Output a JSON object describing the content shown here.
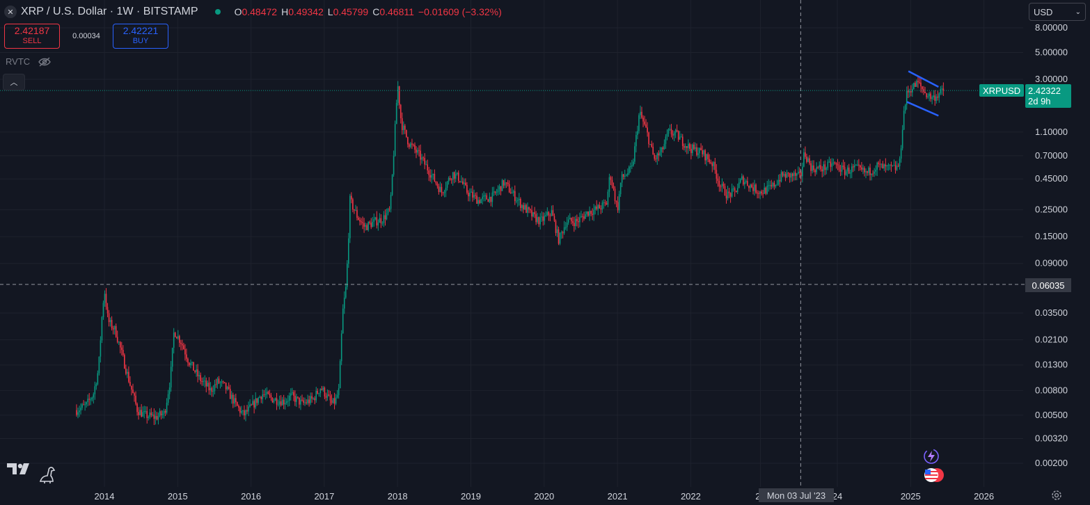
{
  "header": {
    "title": "XRP / U.S. Dollar · 1W · BITSTAMP",
    "ohlc": [
      {
        "k": "O",
        "v": "0.48472"
      },
      {
        "k": "H",
        "v": "0.49342"
      },
      {
        "k": "L",
        "v": "0.45799"
      },
      {
        "k": "C",
        "v": "0.46811"
      }
    ],
    "change": "−0.01609 (−3.32%)"
  },
  "trade": {
    "sell_price": "2.42187",
    "sell_label": "SELL",
    "spread": "0.00034",
    "buy_price": "2.42221",
    "buy_label": "BUY"
  },
  "indicator": {
    "name": "RVTC"
  },
  "currency": {
    "selected": "USD"
  },
  "price_tag": {
    "symbol": "XRPUSD",
    "price": "2.42322",
    "countdown": "2d 9h"
  },
  "crosshair": {
    "price": "0.06035",
    "date": "Mon 03 Jul '23",
    "year_frac": 2023.5
  },
  "colors": {
    "up": "#089981",
    "down": "#f23645",
    "bg": "#131722",
    "grid": "#1e222d",
    "pattern": "#2962ff"
  },
  "chart_data": {
    "type": "candlestick",
    "symbol": "XRPUSD",
    "interval": "1W",
    "exchange": "BITSTAMP",
    "y_scale": "log",
    "ylim": [
      0.0015,
      10
    ],
    "xlim": [
      2013.5,
      2026.3
    ],
    "y_ticks": [
      "8.00000",
      "5.00000",
      "3.00000",
      "1.10000",
      "0.70000",
      "0.45000",
      "0.25000",
      "0.15000",
      "0.09000",
      "0.06035",
      "0.03500",
      "0.02100",
      "0.01300",
      "0.00800",
      "0.00500",
      "0.00320",
      "0.00200"
    ],
    "y_tick_values": [
      8,
      5,
      3,
      1.1,
      0.7,
      0.45,
      0.25,
      0.15,
      0.09,
      0.06035,
      0.035,
      0.021,
      0.013,
      0.008,
      0.005,
      0.0032,
      0.002
    ],
    "x_ticks": [
      "2014",
      "2015",
      "2016",
      "2017",
      "2018",
      "2019",
      "2020",
      "2021",
      "2022",
      "20",
      "24",
      "2025",
      "2026"
    ],
    "x_tick_values": [
      2014,
      2015,
      2016,
      2017,
      2018,
      2019,
      2020,
      2021,
      2022,
      2022.95,
      2024,
      2025,
      2026
    ],
    "price_path": [
      [
        2013.62,
        0.0055
      ],
      [
        2013.75,
        0.006
      ],
      [
        2013.85,
        0.0075
      ],
      [
        2013.92,
        0.012
      ],
      [
        2013.97,
        0.035
      ],
      [
        2014.0,
        0.055
      ],
      [
        2014.05,
        0.03
      ],
      [
        2014.15,
        0.025
      ],
      [
        2014.25,
        0.015
      ],
      [
        2014.35,
        0.009
      ],
      [
        2014.45,
        0.0055
      ],
      [
        2014.55,
        0.005
      ],
      [
        2014.7,
        0.0048
      ],
      [
        2014.82,
        0.0052
      ],
      [
        2014.9,
        0.01
      ],
      [
        2014.95,
        0.025
      ],
      [
        2015.05,
        0.02
      ],
      [
        2015.15,
        0.014
      ],
      [
        2015.3,
        0.01
      ],
      [
        2015.45,
        0.008
      ],
      [
        2015.55,
        0.0095
      ],
      [
        2015.65,
        0.0085
      ],
      [
        2015.8,
        0.006
      ],
      [
        2015.9,
        0.005
      ],
      [
        2016.0,
        0.0058
      ],
      [
        2016.15,
        0.0075
      ],
      [
        2016.3,
        0.0068
      ],
      [
        2016.45,
        0.0065
      ],
      [
        2016.55,
        0.0072
      ],
      [
        2016.7,
        0.0062
      ],
      [
        2016.85,
        0.0068
      ],
      [
        2016.95,
        0.0085
      ],
      [
        2017.05,
        0.007
      ],
      [
        2017.1,
        0.0062
      ],
      [
        2017.15,
        0.0065
      ],
      [
        2017.2,
        0.008
      ],
      [
        2017.25,
        0.035
      ],
      [
        2017.3,
        0.06
      ],
      [
        2017.33,
        0.15
      ],
      [
        2017.35,
        0.3
      ],
      [
        2017.45,
        0.22
      ],
      [
        2017.55,
        0.18
      ],
      [
        2017.7,
        0.2
      ],
      [
        2017.8,
        0.21
      ],
      [
        2017.9,
        0.25
      ],
      [
        2017.96,
        1.0
      ],
      [
        2018.0,
        2.8
      ],
      [
        2018.05,
        1.3
      ],
      [
        2018.15,
        0.9
      ],
      [
        2018.3,
        0.7
      ],
      [
        2018.45,
        0.5
      ],
      [
        2018.6,
        0.35
      ],
      [
        2018.75,
        0.5
      ],
      [
        2018.85,
        0.45
      ],
      [
        2018.95,
        0.35
      ],
      [
        2019.1,
        0.3
      ],
      [
        2019.3,
        0.32
      ],
      [
        2019.45,
        0.42
      ],
      [
        2019.55,
        0.35
      ],
      [
        2019.7,
        0.27
      ],
      [
        2019.85,
        0.22
      ],
      [
        2019.95,
        0.2
      ],
      [
        2020.1,
        0.24
      ],
      [
        2020.2,
        0.14
      ],
      [
        2020.3,
        0.2
      ],
      [
        2020.45,
        0.2
      ],
      [
        2020.6,
        0.24
      ],
      [
        2020.7,
        0.25
      ],
      [
        2020.85,
        0.28
      ],
      [
        2020.9,
        0.5
      ],
      [
        2021.0,
        0.25
      ],
      [
        2021.05,
        0.45
      ],
      [
        2021.2,
        0.55
      ],
      [
        2021.3,
        1.6
      ],
      [
        2021.4,
        1.1
      ],
      [
        2021.5,
        0.65
      ],
      [
        2021.6,
        0.75
      ],
      [
        2021.7,
        1.1
      ],
      [
        2021.8,
        1.05
      ],
      [
        2021.9,
        0.9
      ],
      [
        2022.0,
        0.8
      ],
      [
        2022.15,
        0.75
      ],
      [
        2022.3,
        0.6
      ],
      [
        2022.4,
        0.4
      ],
      [
        2022.5,
        0.33
      ],
      [
        2022.6,
        0.35
      ],
      [
        2022.7,
        0.45
      ],
      [
        2022.85,
        0.38
      ],
      [
        2022.95,
        0.35
      ],
      [
        2023.1,
        0.38
      ],
      [
        2023.25,
        0.48
      ],
      [
        2023.4,
        0.48
      ],
      [
        2023.5,
        0.47
      ],
      [
        2023.55,
        0.75
      ],
      [
        2023.65,
        0.55
      ],
      [
        2023.8,
        0.55
      ],
      [
        2023.95,
        0.6
      ],
      [
        2024.1,
        0.52
      ],
      [
        2024.25,
        0.55
      ],
      [
        2024.4,
        0.5
      ],
      [
        2024.55,
        0.58
      ],
      [
        2024.65,
        0.55
      ],
      [
        2024.8,
        0.55
      ],
      [
        2024.85,
        0.6
      ],
      [
        2024.9,
        1.5
      ],
      [
        2024.95,
        2.3
      ],
      [
        2025.0,
        2.5
      ],
      [
        2025.1,
        2.8
      ],
      [
        2025.2,
        2.3
      ],
      [
        2025.3,
        2.1
      ],
      [
        2025.4,
        2.3
      ],
      [
        2025.45,
        2.42
      ]
    ],
    "pattern_lines": [
      {
        "from": [
          2024.97,
          3.5
        ],
        "to": [
          2025.38,
          2.6
        ]
      },
      {
        "from": [
          2024.95,
          1.95
        ],
        "to": [
          2025.38,
          1.5
        ]
      }
    ]
  }
}
